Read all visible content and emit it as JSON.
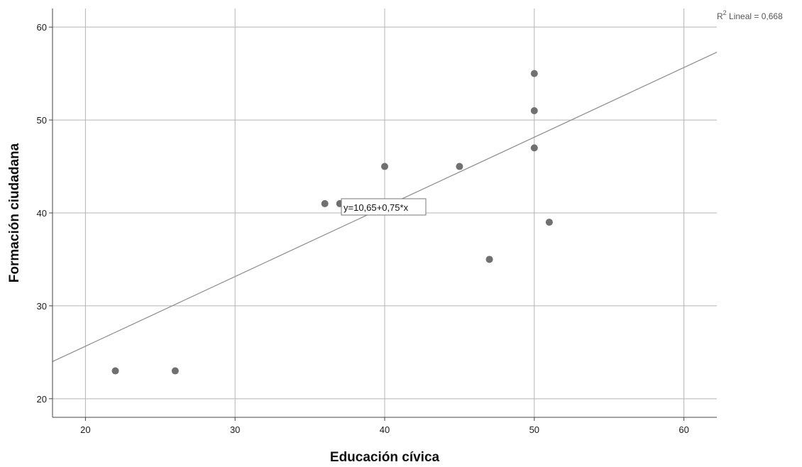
{
  "chart_data": {
    "type": "scatter",
    "title": "",
    "xlabel": "Educación cívica",
    "ylabel": "Formación ciudadana",
    "xlim": [
      17.8,
      62.2
    ],
    "ylim": [
      18,
      62
    ],
    "x_ticks": [
      20,
      30,
      40,
      50,
      60
    ],
    "y_ticks": [
      20,
      30,
      40,
      50,
      60
    ],
    "x_tick_labels": [
      "20",
      "30",
      "40",
      "50",
      "60"
    ],
    "y_tick_labels": [
      "20",
      "30",
      "40",
      "50",
      "60"
    ],
    "grid": true,
    "points": [
      {
        "x": 22,
        "y": 23
      },
      {
        "x": 26,
        "y": 23
      },
      {
        "x": 36,
        "y": 41
      },
      {
        "x": 37,
        "y": 41
      },
      {
        "x": 40,
        "y": 45
      },
      {
        "x": 45,
        "y": 45
      },
      {
        "x": 47,
        "y": 35
      },
      {
        "x": 50,
        "y": 55
      },
      {
        "x": 50,
        "y": 51
      },
      {
        "x": 50,
        "y": 47
      },
      {
        "x": 51,
        "y": 39
      }
    ],
    "fit_line": {
      "intercept": 10.65,
      "slope": 0.75
    },
    "equation_label": "y=10,65+0,75*x",
    "r2_label": {
      "prefix": "R",
      "superscript": "2",
      "text": " Lineal = 0,668"
    },
    "colors": {
      "point": "#707070",
      "grid": "#b4b4b4",
      "fit_line": "#8c8c8c",
      "axis": "#444444"
    }
  }
}
